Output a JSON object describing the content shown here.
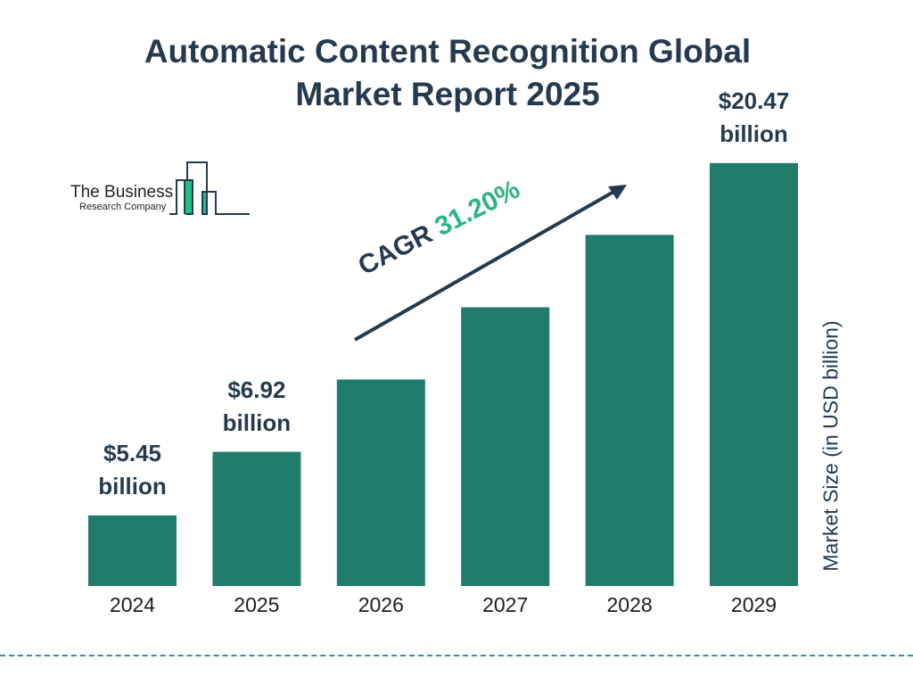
{
  "title_line1": "Automatic Content Recognition Global",
  "title_line2": "Market Report 2025",
  "logo": {
    "line1": "The Business",
    "line2": "Research Company"
  },
  "cagr": {
    "label": "CAGR",
    "value": "31.20%"
  },
  "colors": {
    "bar": "#217b6b",
    "title": "#263a4f",
    "cagr_value": "#2db47f",
    "logo_accent": "#1fbf8a"
  },
  "chart_data": {
    "type": "bar",
    "title": "Automatic Content Recognition Global Market Report 2025",
    "categories": [
      "2024",
      "2025",
      "2026",
      "2027",
      "2028",
      "2029"
    ],
    "values": [
      5.45,
      6.92,
      9.08,
      11.91,
      15.63,
      20.47
    ],
    "data_labels": [
      {
        "index": 0,
        "line1": "$5.45",
        "line2": "billion"
      },
      {
        "index": 1,
        "line1": "$6.92",
        "line2": "billion"
      },
      {
        "index": 5,
        "line1": "$20.47",
        "line2": "billion"
      }
    ],
    "ylabel": "Market Size (in USD billion)",
    "xlabel": "",
    "yscale": "log",
    "grid": false,
    "legend": "none"
  }
}
